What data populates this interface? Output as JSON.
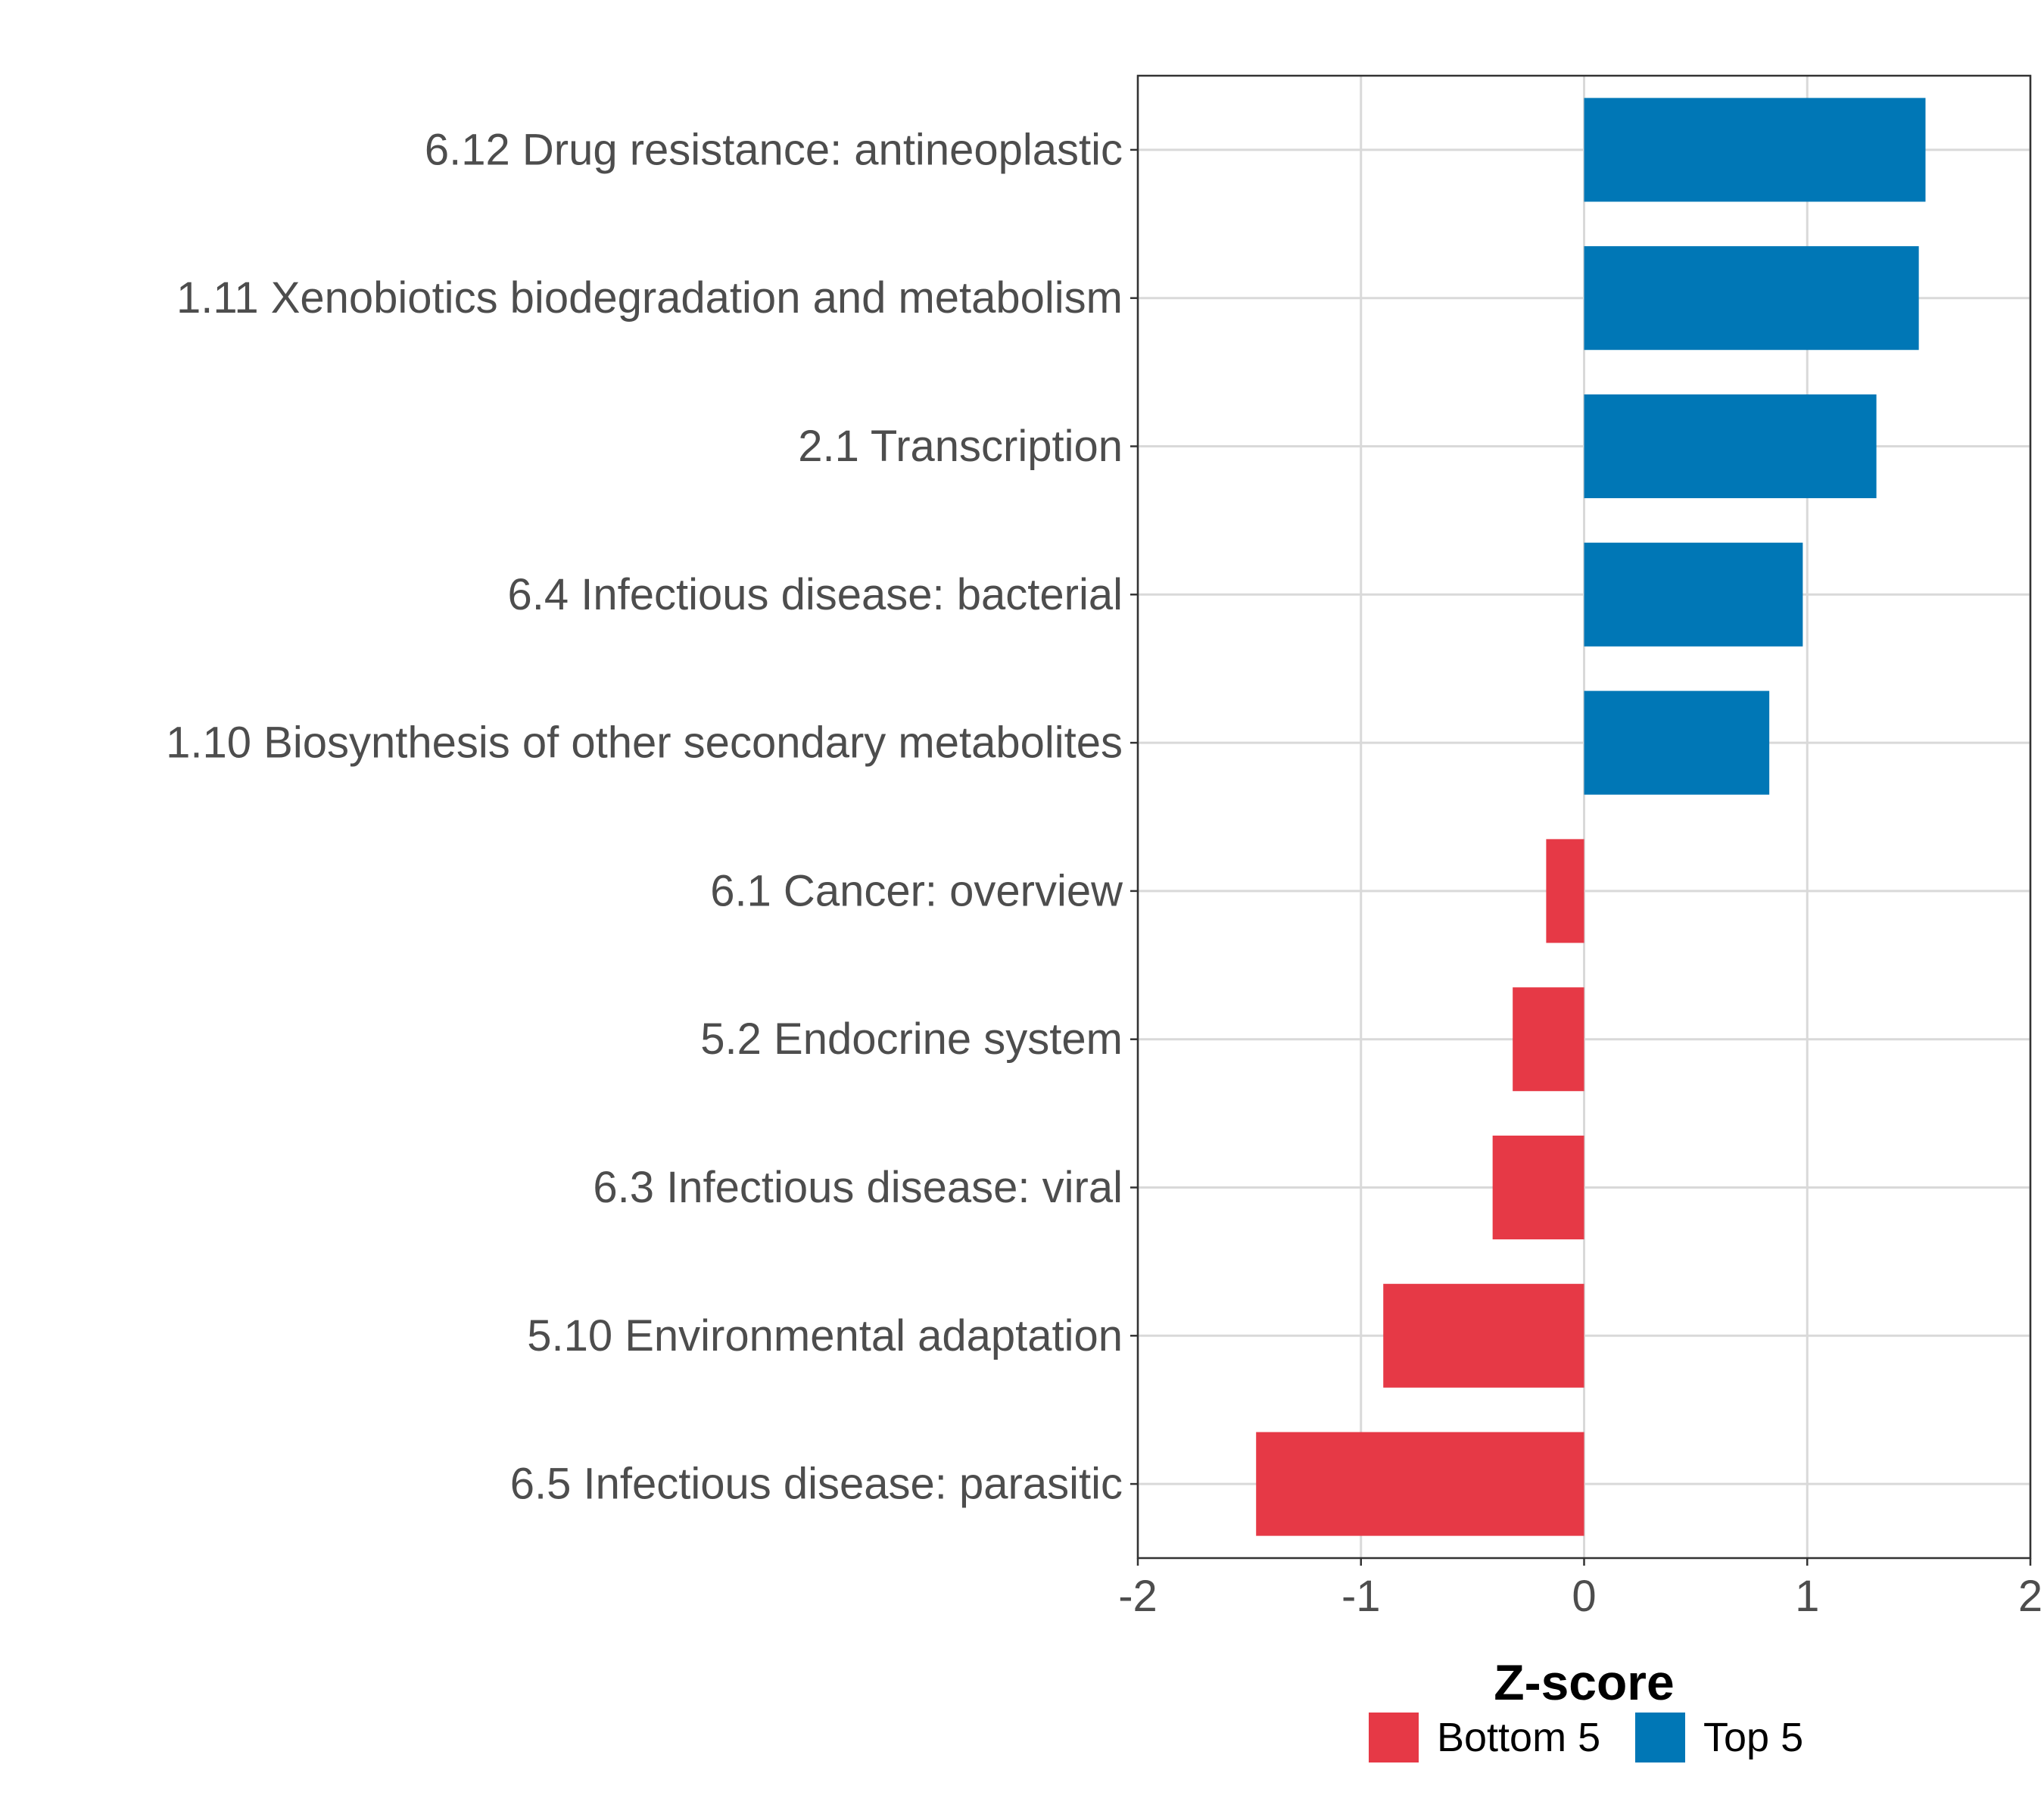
{
  "chart_data": {
    "type": "bar",
    "orientation": "horizontal",
    "title": "",
    "xlabel": "Z-score",
    "ylabel": "",
    "xlim": [
      -2,
      2
    ],
    "x_ticks": [
      "-2",
      "-1",
      "0",
      "1",
      "2"
    ],
    "x_tick_values": [
      -2,
      -1,
      0,
      1,
      2
    ],
    "grid": true,
    "legend_position": "bottom",
    "categories": [
      "6.12 Drug resistance: antineoplastic",
      "1.11 Xenobiotics biodegradation and metabolism",
      "2.1 Transcription",
      "6.4 Infectious disease: bacterial",
      "1.10 Biosynthesis of other secondary metabolites",
      "6.1 Cancer: overview",
      "5.2 Endocrine system",
      "6.3 Infectious disease: viral",
      "5.10 Environmental adaptation",
      "6.5 Infectious disease: parasitic"
    ],
    "values": [
      1.53,
      1.5,
      1.31,
      0.98,
      0.83,
      -0.17,
      -0.32,
      -0.41,
      -0.9,
      -1.47
    ],
    "groups": [
      "Top 5",
      "Top 5",
      "Top 5",
      "Top 5",
      "Top 5",
      "Bottom 5",
      "Bottom 5",
      "Bottom 5",
      "Bottom 5",
      "Bottom 5"
    ],
    "legend": [
      {
        "name": "Bottom 5",
        "color": "#E63946"
      },
      {
        "name": "Top 5",
        "color": "#0077B6"
      }
    ]
  },
  "colors": {
    "Top 5": "#0077B6",
    "Bottom 5": "#E63946",
    "grid": "#d9d9d9",
    "axis": "#333333",
    "text": "#4d4d4d"
  }
}
